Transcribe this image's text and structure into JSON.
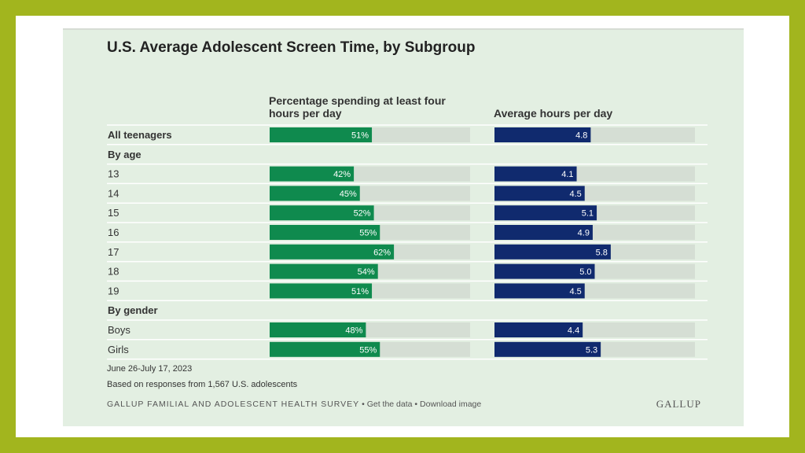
{
  "chart_data": {
    "type": "bar",
    "title": "U.S. Average Adolescent Screen Time, by Subgroup",
    "columns": [
      {
        "name": "Percentage spending at least four hours per day",
        "max": 100,
        "color": "#0f8a4e",
        "suffix": "%"
      },
      {
        "name": "Average hours per day",
        "max": 10,
        "color": "#102a6e",
        "suffix": ""
      }
    ],
    "rows": [
      {
        "label": "All teenagers",
        "kind": "group-data",
        "pct": 51,
        "hours": 4.8
      },
      {
        "label": "By age",
        "kind": "header"
      },
      {
        "label": "13",
        "kind": "data",
        "pct": 42,
        "hours": 4.1
      },
      {
        "label": "14",
        "kind": "data",
        "pct": 45,
        "hours": 4.5
      },
      {
        "label": "15",
        "kind": "data",
        "pct": 52,
        "hours": 5.1
      },
      {
        "label": "16",
        "kind": "data",
        "pct": 55,
        "hours": 4.9
      },
      {
        "label": "17",
        "kind": "data",
        "pct": 62,
        "hours": 5.8
      },
      {
        "label": "18",
        "kind": "data",
        "pct": 54,
        "hours": 5.0
      },
      {
        "label": "19",
        "kind": "data",
        "pct": 51,
        "hours": 4.5
      },
      {
        "label": "By gender",
        "kind": "header"
      },
      {
        "label": "Boys",
        "kind": "data",
        "pct": 48,
        "hours": 4.4
      },
      {
        "label": "Girls",
        "kind": "data",
        "pct": 55,
        "hours": 5.3
      }
    ]
  },
  "header": {
    "title": "U.S. Average Adolescent Screen Time, by Subgroup",
    "col1_line1": "Percentage spending at least four",
    "col1_line2": "hours per day",
    "col2": "Average hours per day"
  },
  "notes": {
    "date": "June 26-July 17, 2023",
    "sample": "Based on responses from 1,567 U.S. adolescents"
  },
  "footer": {
    "survey": "GALLUP FAMILIAL AND ADOLESCENT HEALTH SURVEY",
    "separator": " • ",
    "get_data": "Get the data",
    "download": "Download image",
    "logo": "GALLUP"
  }
}
